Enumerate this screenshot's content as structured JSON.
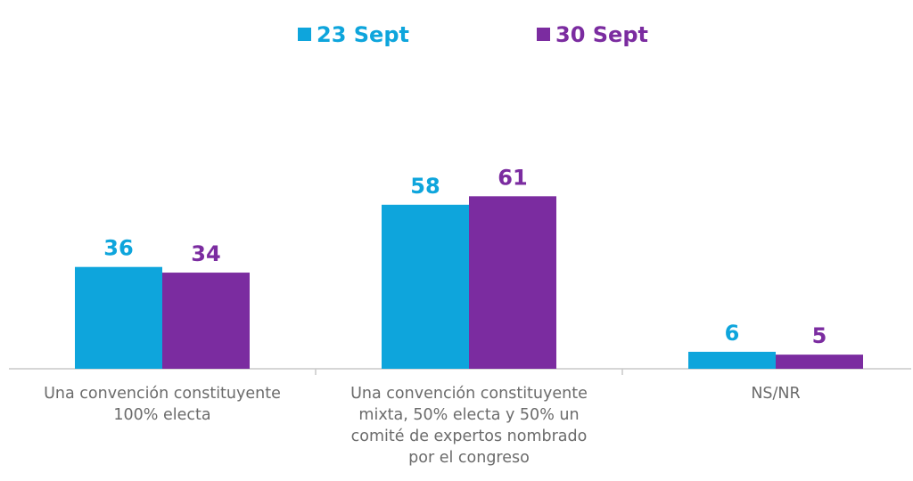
{
  "chart_data": {
    "type": "bar",
    "title": "",
    "xlabel": "",
    "ylabel": "",
    "ylim": [
      0,
      70
    ],
    "grid": false,
    "legend_position": "top-center",
    "categories": [
      [
        "Una convención constituyente",
        "100% electa"
      ],
      [
        "Una convención constituyente",
        "mixta, 50% electa y 50% un",
        "comité de expertos nombrado",
        "por el congreso"
      ],
      [
        "NS/NR"
      ]
    ],
    "series": [
      {
        "name": "23 Sept",
        "color": "#0ea5dc",
        "values": [
          36,
          58,
          6
        ]
      },
      {
        "name": "30 Sept",
        "color": "#7b2ca0",
        "values": [
          34,
          61,
          5
        ]
      }
    ]
  }
}
